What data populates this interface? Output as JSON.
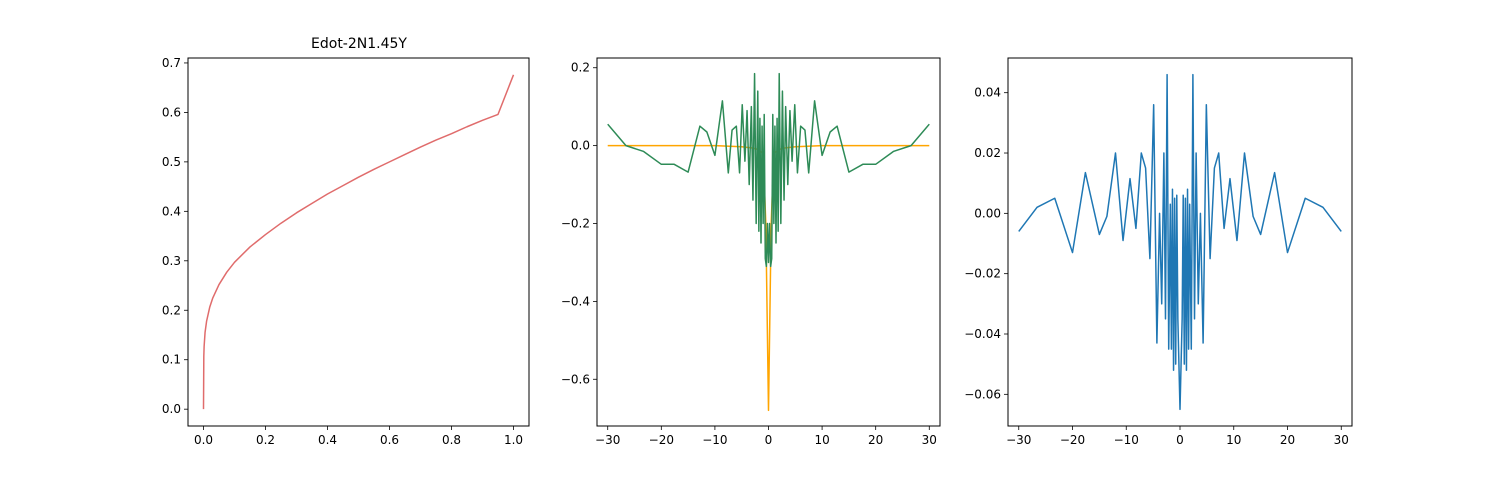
{
  "figure": {
    "background": "#ffffff"
  },
  "chart_data": [
    {
      "type": "line",
      "title": "Edot-2N1.45Y",
      "xlabel": "",
      "ylabel": "",
      "xlim": [
        -0.05,
        1.05
      ],
      "ylim": [
        -0.034,
        0.71
      ],
      "xticks": [
        0.0,
        0.2,
        0.4,
        0.6,
        0.8,
        1.0
      ],
      "xtick_labels": [
        "0.0",
        "0.2",
        "0.4",
        "0.6",
        "0.8",
        "1.0"
      ],
      "yticks": [
        0.0,
        0.1,
        0.2,
        0.3,
        0.4,
        0.5,
        0.6,
        0.7
      ],
      "ytick_labels": [
        "0.0",
        "0.1",
        "0.2",
        "0.3",
        "0.4",
        "0.5",
        "0.6",
        "0.7"
      ],
      "grid": false,
      "series": [
        {
          "name": "curve",
          "color": "#e06c6c",
          "x": [
            0.0,
            0.001,
            0.002,
            0.005,
            0.01,
            0.02,
            0.03,
            0.05,
            0.075,
            0.1,
            0.15,
            0.2,
            0.25,
            0.3,
            0.35,
            0.4,
            0.45,
            0.5,
            0.55,
            0.6,
            0.65,
            0.7,
            0.75,
            0.8,
            0.85,
            0.9,
            0.95,
            1.0
          ],
          "y": [
            0.0,
            0.107,
            0.127,
            0.155,
            0.178,
            0.206,
            0.225,
            0.252,
            0.277,
            0.297,
            0.328,
            0.353,
            0.376,
            0.397,
            0.416,
            0.435,
            0.452,
            0.469,
            0.485,
            0.5,
            0.515,
            0.53,
            0.544,
            0.557,
            0.571,
            0.584,
            0.596,
            0.676
          ]
        }
      ]
    },
    {
      "type": "line",
      "title": "",
      "xlabel": "",
      "ylabel": "",
      "xlim": [
        -32,
        32
      ],
      "ylim": [
        -0.72,
        0.225
      ],
      "xticks": [
        -30,
        -20,
        -10,
        0,
        10,
        20,
        30
      ],
      "xtick_labels": [
        "−30",
        "−20",
        "−10",
        "0",
        "10",
        "20",
        "30"
      ],
      "yticks": [
        -0.6,
        -0.4,
        -0.2,
        0.0,
        0.2
      ],
      "ytick_labels": [
        "−0.6",
        "−0.4",
        "−0.2",
        "0.0",
        "0.2"
      ],
      "grid": false,
      "series": [
        {
          "name": "orange",
          "color": "#ffa500",
          "x": [
            -30,
            -25,
            -20,
            -15,
            -10,
            -5,
            -3,
            -2,
            -1,
            -0.5,
            0,
            0.5,
            1,
            2,
            3,
            5,
            10,
            15,
            20,
            25,
            30
          ],
          "y": [
            0.0,
            0.0,
            0.0,
            0.0,
            0.0,
            -0.003,
            -0.006,
            -0.01,
            -0.02,
            -0.2,
            -0.68,
            -0.2,
            -0.02,
            -0.01,
            -0.006,
            -0.003,
            0.0,
            0.0,
            0.0,
            0.0,
            0.0
          ]
        },
        {
          "name": "green",
          "color": "#2e8b57",
          "x": [
            -30,
            -26.6,
            -23.3,
            -20,
            -17.6,
            -15,
            -12.8,
            -11.5,
            -10,
            -8.6,
            -7.5,
            -6.8,
            -6,
            -5.4,
            -4.9,
            -4.4,
            -4,
            -3.6,
            -3.2,
            -2.9,
            -2.6,
            -2.3,
            -2,
            -1.8,
            -1.6,
            -1.4,
            -1.2,
            -1,
            -0.8,
            -0.6,
            -0.4,
            -0.2,
            0,
            0.2,
            0.4,
            0.6,
            0.8,
            1,
            1.2,
            1.4,
            1.6,
            1.8,
            2,
            2.3,
            2.6,
            2.9,
            3.2,
            3.6,
            4,
            4.4,
            4.9,
            5.4,
            6,
            6.8,
            7.5,
            8.6,
            10,
            11.5,
            12.8,
            15,
            17.6,
            20,
            23.3,
            26.6,
            30
          ],
          "y": [
            0.055,
            0.0,
            -0.015,
            -0.048,
            -0.048,
            -0.068,
            0.05,
            0.035,
            -0.025,
            0.115,
            -0.07,
            0.04,
            0.05,
            -0.07,
            0.105,
            -0.04,
            0.09,
            -0.1,
            0.1,
            -0.14,
            0.185,
            -0.2,
            0.14,
            -0.22,
            0.07,
            -0.25,
            0.05,
            -0.2,
            0.08,
            -0.29,
            -0.31,
            -0.2,
            -0.3,
            -0.2,
            -0.31,
            -0.29,
            0.08,
            -0.2,
            0.05,
            -0.25,
            0.07,
            -0.22,
            0.185,
            -0.2,
            0.14,
            -0.14,
            0.1,
            -0.1,
            0.09,
            -0.04,
            0.105,
            -0.07,
            0.05,
            0.04,
            -0.07,
            0.115,
            -0.025,
            0.035,
            0.05,
            -0.068,
            -0.048,
            -0.048,
            -0.015,
            0.0,
            0.055
          ]
        }
      ]
    },
    {
      "type": "line",
      "title": "",
      "xlabel": "",
      "ylabel": "",
      "xlim": [
        -32,
        32
      ],
      "ylim": [
        -0.0705,
        0.0515
      ],
      "xticks": [
        -30,
        -20,
        -10,
        0,
        10,
        20,
        30
      ],
      "xtick_labels": [
        "−30",
        "−20",
        "−10",
        "0",
        "10",
        "20",
        "30"
      ],
      "yticks": [
        -0.06,
        -0.04,
        -0.02,
        0.0,
        0.02,
        0.04
      ],
      "ytick_labels": [
        "−0.06",
        "−0.04",
        "−0.02",
        "0.00",
        "0.02",
        "0.04"
      ],
      "grid": false,
      "series": [
        {
          "name": "blue",
          "color": "#1f77b4",
          "x": [
            -30,
            -26.6,
            -23.3,
            -20,
            -17.6,
            -15,
            -13.6,
            -12,
            -10.6,
            -9.3,
            -8.2,
            -7.2,
            -6.4,
            -5.6,
            -4.9,
            -4.3,
            -3.8,
            -3.4,
            -3,
            -2.7,
            -2.4,
            -2.1,
            -1.8,
            -1.6,
            -1.4,
            -1.2,
            -1,
            -0.8,
            -0.6,
            -0.4,
            -0.2,
            0,
            0.2,
            0.4,
            0.6,
            0.8,
            1,
            1.2,
            1.4,
            1.6,
            1.8,
            2.1,
            2.4,
            2.7,
            3,
            3.4,
            3.8,
            4.3,
            4.9,
            5.6,
            6.4,
            7.2,
            8.2,
            9.3,
            10.6,
            12,
            13.6,
            15,
            17.6,
            20,
            23.3,
            26.6,
            30
          ],
          "y": [
            -0.006,
            0.002,
            0.005,
            -0.013,
            0.0135,
            -0.007,
            -0.001,
            0.02,
            -0.009,
            0.0115,
            -0.005,
            0.02,
            0.015,
            -0.015,
            0.036,
            -0.043,
            0.0,
            -0.03,
            0.02,
            -0.035,
            0.046,
            -0.045,
            0.003,
            -0.045,
            0.008,
            -0.052,
            0.005,
            -0.05,
            0.006,
            -0.035,
            -0.05,
            -0.065,
            -0.05,
            -0.035,
            0.006,
            -0.05,
            0.005,
            -0.052,
            0.008,
            -0.045,
            0.003,
            -0.045,
            0.046,
            -0.035,
            0.02,
            -0.03,
            0.0,
            -0.043,
            0.036,
            -0.015,
            0.015,
            0.02,
            -0.005,
            0.0115,
            -0.009,
            0.02,
            -0.001,
            -0.007,
            0.0135,
            -0.013,
            0.005,
            0.002,
            -0.006
          ]
        }
      ]
    }
  ]
}
